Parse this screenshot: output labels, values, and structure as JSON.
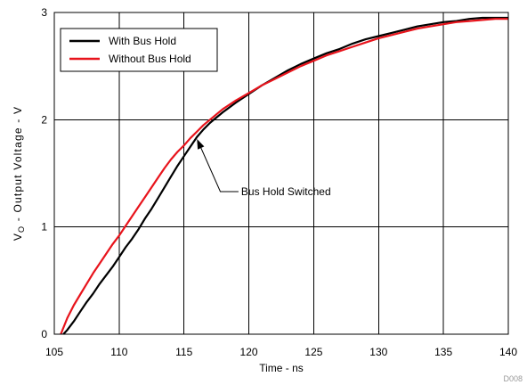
{
  "chart_data": {
    "type": "line",
    "title": "",
    "xlabel": "Time - ns",
    "ylabel_main": "V",
    "ylabel_sub": "O",
    "ylabel_rest": " - Output Voltage - V",
    "xlim": [
      105,
      140
    ],
    "ylim": [
      0,
      3
    ],
    "xticks": [
      105,
      110,
      115,
      120,
      125,
      130,
      135,
      140
    ],
    "yticks": [
      0,
      1,
      2,
      3
    ],
    "grid": true,
    "legend_position": "top-left",
    "series": [
      {
        "name": "With Bus Hold",
        "color": "#000000",
        "x": [
          105.7,
          106,
          106.5,
          107,
          107.5,
          108,
          108.5,
          109,
          109.5,
          110,
          110.5,
          111,
          111.5,
          112,
          112.5,
          113,
          113.5,
          114,
          114.5,
          115,
          115.5,
          116,
          116.5,
          117,
          117.5,
          118,
          119,
          120,
          121,
          122,
          123,
          124,
          125,
          126,
          127,
          128,
          129,
          130,
          131,
          132,
          133,
          134,
          135,
          136,
          137,
          138,
          139,
          140
        ],
        "y": [
          0.0,
          0.04,
          0.12,
          0.21,
          0.3,
          0.38,
          0.47,
          0.55,
          0.63,
          0.72,
          0.81,
          0.89,
          0.98,
          1.08,
          1.17,
          1.27,
          1.37,
          1.47,
          1.57,
          1.66,
          1.75,
          1.84,
          1.91,
          1.97,
          2.02,
          2.07,
          2.16,
          2.24,
          2.32,
          2.39,
          2.46,
          2.52,
          2.57,
          2.62,
          2.66,
          2.71,
          2.75,
          2.78,
          2.81,
          2.84,
          2.87,
          2.89,
          2.91,
          2.92,
          2.94,
          2.95,
          2.95,
          2.95
        ]
      },
      {
        "name": "Without Bus Hold",
        "color": "#e8141c",
        "x": [
          105.5,
          106,
          106.5,
          107,
          107.5,
          108,
          108.5,
          109,
          109.5,
          110,
          110.5,
          111,
          111.5,
          112,
          112.5,
          113,
          113.5,
          114,
          114.5,
          115,
          115.5,
          116,
          116.5,
          117,
          117.5,
          118,
          119,
          120,
          121,
          122,
          123,
          124,
          125,
          126,
          127,
          128,
          129,
          130,
          131,
          132,
          133,
          134,
          135,
          136,
          137,
          138,
          139,
          140
        ],
        "y": [
          0.0,
          0.15,
          0.27,
          0.37,
          0.47,
          0.57,
          0.66,
          0.75,
          0.84,
          0.92,
          1.01,
          1.1,
          1.19,
          1.28,
          1.37,
          1.46,
          1.55,
          1.63,
          1.7,
          1.76,
          1.83,
          1.89,
          1.95,
          2.0,
          2.05,
          2.1,
          2.18,
          2.25,
          2.32,
          2.38,
          2.44,
          2.5,
          2.55,
          2.6,
          2.64,
          2.68,
          2.72,
          2.76,
          2.79,
          2.82,
          2.85,
          2.87,
          2.89,
          2.91,
          2.92,
          2.93,
          2.94,
          2.94
        ]
      }
    ],
    "annotation": {
      "text": "Bus Hold Switched",
      "x": 116,
      "y": 1.82,
      "label_x": 119.2,
      "label_y": 1.33,
      "elbow_x": 117.8
    },
    "figure_code": "D008"
  }
}
